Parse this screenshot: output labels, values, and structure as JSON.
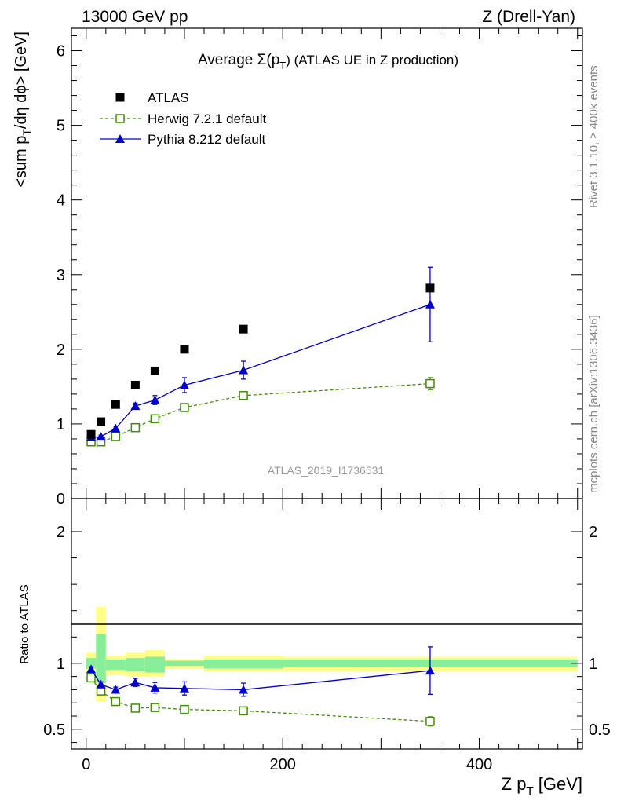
{
  "header": {
    "left": "13000 GeV pp",
    "right": "Z (Drell-Yan)"
  },
  "side_labels": {
    "rivet": "Rivet 3.1.10, ≥ 400k events",
    "mcplots": "mcplots.cern.ch [arXiv:1306.3436]"
  },
  "watermark": "ATLAS_2019_I1736531",
  "chart_data": [
    {
      "type": "scatter",
      "panel": "main",
      "title_prefix": "Average Σ(p",
      "title_sub": "T",
      "title_suffix": ") (ATLAS UE in Z production)",
      "ylabel_prefix": "<sum p",
      "ylabel_sub": "T",
      "ylabel_suffix": "/dη dϕ> [GeV]",
      "xlim": [
        -15,
        505
      ],
      "ylim": [
        0,
        6.3
      ],
      "y_ticks": [
        0,
        1,
        2,
        3,
        4,
        5,
        6
      ],
      "y_tick_labels": [
        "0",
        "1",
        "2",
        "3",
        "4",
        "5",
        "6"
      ],
      "x_ticks": [
        0,
        200,
        400
      ],
      "legend_position": "top-left",
      "series": [
        {
          "name": "ATLAS",
          "style": "data",
          "color": "#000000",
          "x": [
            5,
            15,
            30,
            50,
            70,
            100,
            160,
            350
          ],
          "y": [
            0.86,
            1.03,
            1.26,
            1.52,
            1.71,
            2.0,
            2.27,
            2.82
          ],
          "err": [
            0.02,
            0.02,
            0.02,
            0.02,
            0.02,
            0.02,
            0.03,
            0.05
          ]
        },
        {
          "name": "Herwig 7.2.1 default",
          "style": "open-square-dashed",
          "color": "#3f8f00",
          "x": [
            5,
            15,
            30,
            50,
            70,
            100,
            160,
            350
          ],
          "y": [
            0.76,
            0.76,
            0.83,
            0.95,
            1.07,
            1.22,
            1.38,
            1.54
          ],
          "err": [
            0.01,
            0.01,
            0.01,
            0.02,
            0.02,
            0.03,
            0.03,
            0.08
          ]
        },
        {
          "name": "Pythia 8.212 default",
          "style": "filled-triangle-solid",
          "color": "#0000cc",
          "x": [
            5,
            15,
            30,
            50,
            70,
            100,
            160,
            350
          ],
          "y": [
            0.82,
            0.83,
            0.94,
            1.24,
            1.32,
            1.52,
            1.72,
            2.6
          ],
          "err": [
            0.02,
            0.02,
            0.03,
            0.04,
            0.06,
            0.1,
            0.12,
            0.5
          ]
        }
      ]
    },
    {
      "type": "scatter",
      "panel": "ratio",
      "ylabel": "Ratio to ATLAS",
      "xlabel_prefix": "Z p",
      "xlabel_sub": "T",
      "xlabel_suffix": " [GeV]",
      "xlim": [
        -15,
        505
      ],
      "ylim": [
        0.35,
        2.25
      ],
      "y_ticks": [
        0.5,
        1,
        2
      ],
      "y_tick_labels": [
        "0.5",
        "1",
        "2"
      ],
      "x_ticks": [
        0,
        200,
        400
      ],
      "x_tick_labels": [
        "0",
        "200",
        "400"
      ],
      "reference_line": 1,
      "bands": [
        {
          "x0": 0,
          "x1": 10,
          "yellow": [
            0.93,
            1.08
          ],
          "green": [
            0.96,
            1.04
          ]
        },
        {
          "x0": 10,
          "x1": 20,
          "yellow": [
            0.71,
            1.43
          ],
          "green": [
            0.85,
            1.22
          ]
        },
        {
          "x0": 20,
          "x1": 40,
          "yellow": [
            0.91,
            1.06
          ],
          "green": [
            0.95,
            1.03
          ]
        },
        {
          "x0": 40,
          "x1": 60,
          "yellow": [
            0.9,
            1.08
          ],
          "green": [
            0.94,
            1.04
          ]
        },
        {
          "x0": 60,
          "x1": 80,
          "yellow": [
            0.9,
            1.1
          ],
          "green": [
            0.93,
            1.05
          ]
        },
        {
          "x0": 80,
          "x1": 120,
          "yellow": [
            0.96,
            1.03
          ],
          "green": [
            0.98,
            1.02
          ]
        },
        {
          "x0": 120,
          "x1": 200,
          "yellow": [
            0.94,
            1.06
          ],
          "green": [
            0.96,
            1.03
          ]
        },
        {
          "x0": 200,
          "x1": 500,
          "yellow": [
            0.94,
            1.05
          ],
          "green": [
            0.97,
            1.03
          ]
        }
      ],
      "series": [
        {
          "name": "Herwig 7.2.1 default",
          "style": "open-square-dashed",
          "color": "#3f8f00",
          "x": [
            5,
            15,
            30,
            50,
            70,
            100,
            160,
            350
          ],
          "y": [
            0.89,
            0.79,
            0.71,
            0.66,
            0.665,
            0.65,
            0.64,
            0.56
          ],
          "err": [
            0.01,
            0.01,
            0.01,
            0.01,
            0.01,
            0.015,
            0.015,
            0.035
          ]
        },
        {
          "name": "Pythia 8.212 default",
          "style": "filled-triangle-solid",
          "color": "#0000cc",
          "x": [
            5,
            15,
            30,
            50,
            70,
            100,
            160,
            350
          ],
          "y": [
            0.955,
            0.84,
            0.8,
            0.855,
            0.815,
            0.81,
            0.8,
            0.945
          ],
          "err": [
            0.02,
            0.02,
            0.02,
            0.03,
            0.04,
            0.05,
            0.05,
            0.18
          ]
        }
      ]
    }
  ]
}
